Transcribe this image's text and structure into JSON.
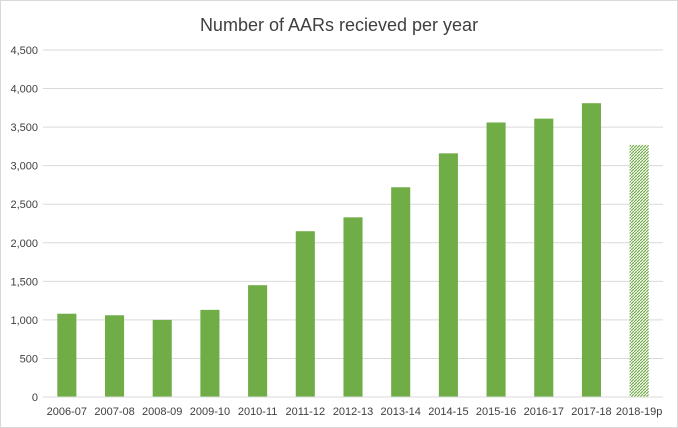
{
  "chart_data": {
    "type": "bar",
    "title": "Number of AARs recieved per year",
    "xlabel": "",
    "ylabel": "",
    "categories": [
      "2006-07",
      "2007-08",
      "2008-09",
      "2009-10",
      "2010-11",
      "2011-12",
      "2012-13",
      "2013-14",
      "2014-15",
      "2015-16",
      "2016-17",
      "2017-18",
      "2018-19p"
    ],
    "values": [
      1080,
      1060,
      1000,
      1130,
      1450,
      2150,
      2330,
      2720,
      3160,
      3560,
      3610,
      3810,
      3270
    ],
    "provisional": [
      false,
      false,
      false,
      false,
      false,
      false,
      false,
      false,
      false,
      false,
      false,
      false,
      true
    ],
    "ylim": [
      0,
      4500
    ],
    "yticks": [
      "0",
      "500",
      "1,000",
      "1,500",
      "2,000",
      "2,500",
      "3,000",
      "3,500",
      "4,000",
      "4,500"
    ],
    "ytick_values": [
      0,
      500,
      1000,
      1500,
      2000,
      2500,
      3000,
      3500,
      4000,
      4500
    ],
    "grid": true,
    "legend": "none",
    "colors": {
      "bar": "#70ad47",
      "grid": "#d9d9d9",
      "text": "#404040"
    }
  }
}
